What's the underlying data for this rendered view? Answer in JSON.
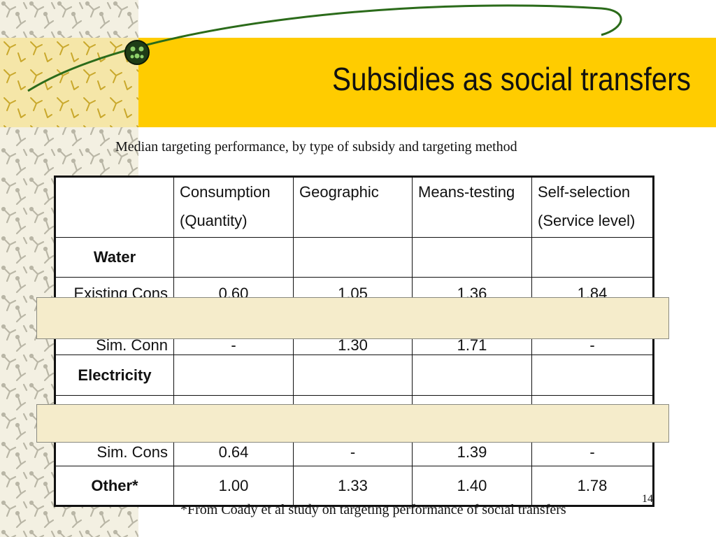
{
  "slide": {
    "title": "Subsidies as social transfers",
    "subtitle": "Median targeting performance, by type of subsidy and targeting method",
    "footnote": "*From Coady et al study on targeting performance of social transfers",
    "page_number": "14"
  },
  "table": {
    "corner": "",
    "headers": [
      [
        "Consumption",
        "(Quantity)"
      ],
      [
        "Geographic"
      ],
      [
        "Means-testing"
      ],
      [
        "Self-selection",
        "(Service level)"
      ]
    ],
    "rows": [
      {
        "label": "Water",
        "cells": [
          "",
          "",
          "",
          ""
        ]
      },
      {
        "label": "Existing Cons",
        "cells": [
          "0.60",
          "1.05",
          "1.36",
          "1.84"
        ]
      },
      {
        "label": "Sim. Conn",
        "cells": [
          "-",
          "1.30",
          "1.71",
          "-"
        ]
      },
      {
        "label": "Electricity",
        "cells": [
          "",
          "",
          "",
          ""
        ]
      },
      {
        "label": "Sim. Cons",
        "cells": [
          "0.64",
          "-",
          "1.39",
          "-"
        ]
      },
      {
        "label": "Other*",
        "cells": [
          "1.00",
          "1.33",
          "1.40",
          "1.78"
        ]
      }
    ]
  },
  "colors": {
    "title_bar": "#ffcc00",
    "overlay_band": "#f5eccb",
    "arc_line": "#2b6b1a"
  }
}
